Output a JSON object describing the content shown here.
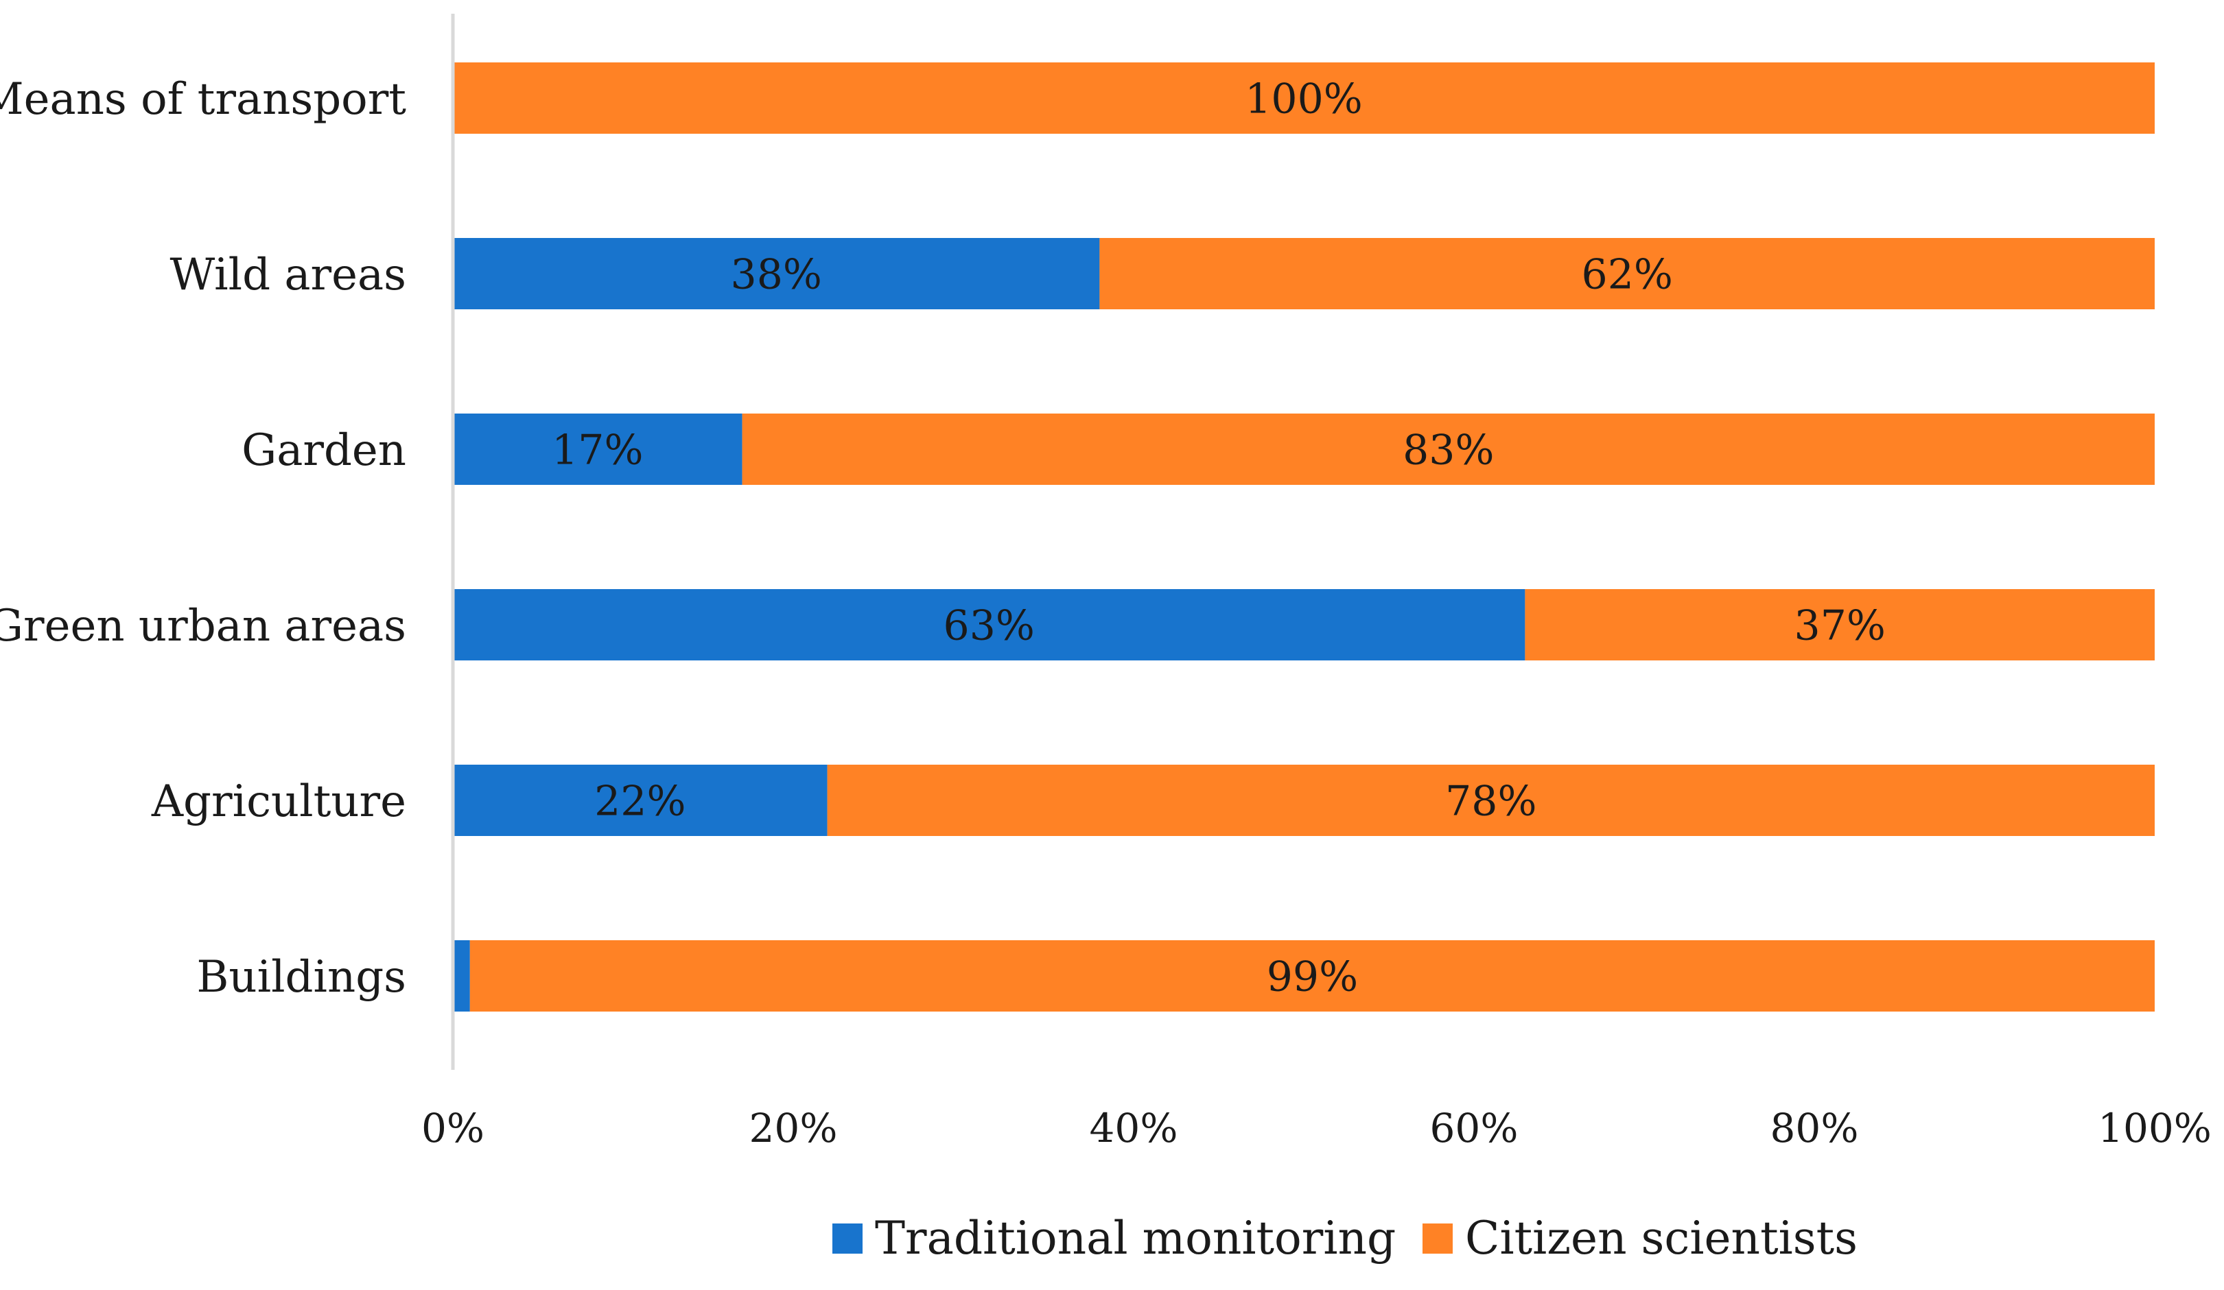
{
  "chart_data": {
    "type": "bar",
    "orientation": "horizontal",
    "stacked": true,
    "percent_stacked": true,
    "categories": [
      "Means of transport",
      "Wild areas",
      "Garden",
      "Green urban areas",
      "Agriculture",
      "Buildings"
    ],
    "series": [
      {
        "name": "Traditional monitoring",
        "color": "#1874CD",
        "values": [
          0,
          38,
          17,
          63,
          22,
          1
        ],
        "labels": [
          "",
          "38%",
          "17%",
          "63%",
          "22%",
          ""
        ]
      },
      {
        "name": "Citizen scientists",
        "color": "#FF8225",
        "values": [
          100,
          62,
          83,
          37,
          78,
          99
        ],
        "labels": [
          "100%",
          "62%",
          "83%",
          "37%",
          "78%",
          "99%"
        ]
      }
    ],
    "xaxis": {
      "min": 0,
      "max": 100,
      "ticks": [
        0,
        20,
        40,
        60,
        80,
        100
      ],
      "tick_labels": [
        "0%",
        "20%",
        "40%",
        "60%",
        "80%",
        "100%"
      ]
    },
    "title": "",
    "xlabel": "",
    "ylabel": "",
    "grid": false,
    "legend_position": "bottom"
  }
}
